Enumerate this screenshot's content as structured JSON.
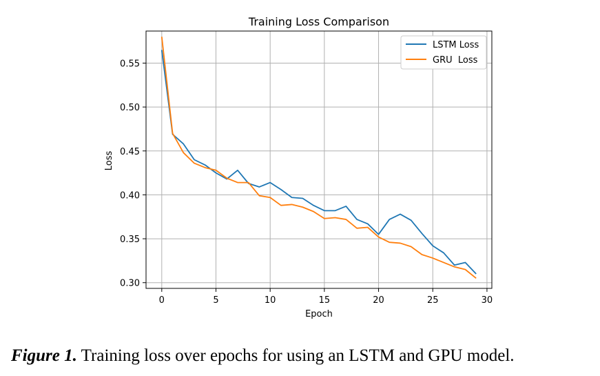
{
  "chart_data": {
    "type": "line",
    "title": "Training Loss Comparison",
    "xlabel": "Epoch",
    "ylabel": "Loss",
    "xlim": [
      -1.45,
      30.45
    ],
    "ylim": [
      0.2935,
      0.5865
    ],
    "xticks": [
      0,
      5,
      10,
      15,
      20,
      25,
      30
    ],
    "yticks": [
      0.3,
      0.35,
      0.4,
      0.45,
      0.5,
      0.55
    ],
    "ytick_labels": [
      "0.30",
      "0.35",
      "0.40",
      "0.45",
      "0.50",
      "0.55"
    ],
    "grid": true,
    "legend_position": "top-right",
    "x": [
      0,
      1,
      2,
      3,
      4,
      5,
      6,
      7,
      8,
      9,
      10,
      11,
      12,
      13,
      14,
      15,
      16,
      17,
      18,
      19,
      20,
      21,
      22,
      23,
      24,
      25,
      26,
      27,
      28,
      29
    ],
    "series": [
      {
        "name": "LSTM Loss",
        "color": "#1f77b4",
        "values": [
          0.565,
          0.469,
          0.458,
          0.44,
          0.434,
          0.425,
          0.418,
          0.428,
          0.413,
          0.409,
          0.414,
          0.406,
          0.397,
          0.396,
          0.388,
          0.382,
          0.382,
          0.387,
          0.372,
          0.367,
          0.355,
          0.372,
          0.378,
          0.371,
          0.356,
          0.342,
          0.334,
          0.32,
          0.323,
          0.31
        ]
      },
      {
        "name": "GRU  Loss",
        "color": "#ff7f0e",
        "values": [
          0.58,
          0.47,
          0.448,
          0.436,
          0.431,
          0.428,
          0.419,
          0.414,
          0.414,
          0.399,
          0.397,
          0.388,
          0.389,
          0.386,
          0.381,
          0.373,
          0.374,
          0.372,
          0.362,
          0.363,
          0.352,
          0.346,
          0.345,
          0.341,
          0.332,
          0.328,
          0.323,
          0.318,
          0.315,
          0.305
        ]
      }
    ]
  },
  "caption": {
    "label": "Figure 1.",
    "text": " Training loss over epochs for using an LSTM and GPU model."
  }
}
